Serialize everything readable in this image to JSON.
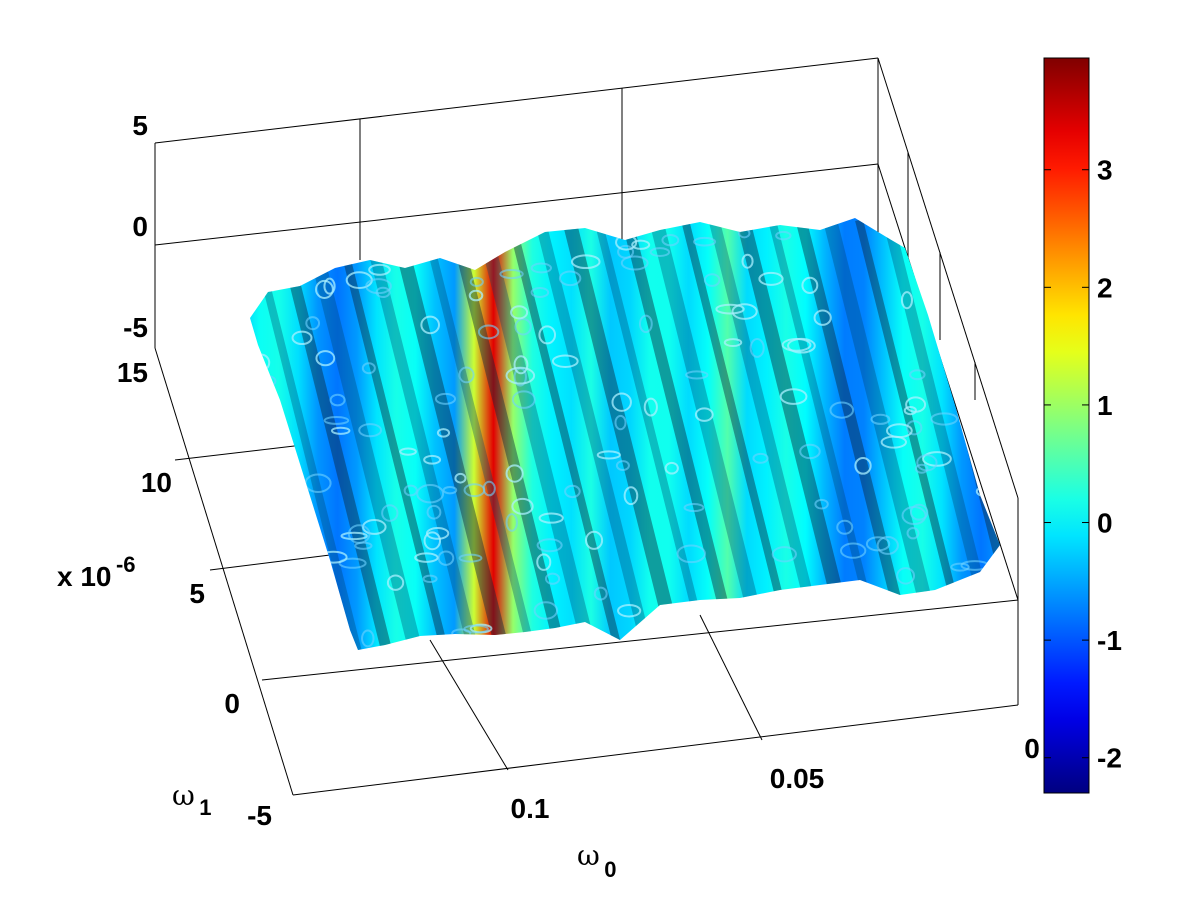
{
  "chart_data": {
    "type": "surface",
    "grid": true,
    "x_axis": {
      "label": "ω",
      "label_sub": "0",
      "ticks": [
        0.1,
        0.05,
        0
      ],
      "tick_labels": [
        "0.1",
        "0.05",
        "0"
      ]
    },
    "y_axis": {
      "label": "ω",
      "label_sub": "1",
      "ticks": [
        -5,
        0,
        5,
        10,
        15
      ],
      "tick_labels": [
        "-5",
        "0",
        "5",
        "10",
        "15"
      ],
      "multiplier": "x 10",
      "multiplier_exp": "-6"
    },
    "z_axis": {
      "ticks": [
        -5,
        0,
        5
      ],
      "tick_labels": [
        "-5",
        "0",
        "5"
      ]
    },
    "colorbar": {
      "placement": "right",
      "range": [
        -2.3,
        3.95
      ],
      "ticks": [
        -2,
        -1,
        0,
        1,
        2,
        3
      ],
      "tick_labels": [
        "-2",
        "-1",
        "0",
        "1",
        "2",
        "3"
      ],
      "colormap": "jet"
    },
    "surface": {
      "value_range": [
        -2.3,
        3.95
      ],
      "ridges": [
        {
          "position": 0.32,
          "peak": 3.9
        },
        {
          "position": 0.62,
          "peak": 1.4
        },
        {
          "position": 0.45,
          "peak": 1.0
        }
      ]
    }
  }
}
